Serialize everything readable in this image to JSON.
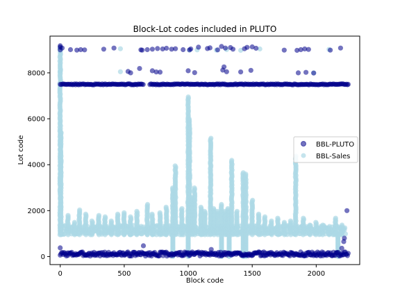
{
  "chart_data": {
    "type": "scatter",
    "title": "Block-Lot codes included in PLUTO",
    "xlabel": "Block code",
    "ylabel": "Lot code",
    "xlim": [
      -80,
      2340
    ],
    "ylim": [
      -350,
      9600
    ],
    "xticks": [
      0,
      500,
      1000,
      1500,
      2000
    ],
    "yticks": [
      0,
      2000,
      4000,
      6000,
      8000
    ],
    "grid": false,
    "legend_position": "center-right",
    "series": [
      {
        "name": "BBL-PLUTO",
        "color": "#00008b",
        "opacity": 0.55,
        "bands": [
          {
            "x_from": 0,
            "x_to": 2250,
            "y_from": 20,
            "y_to": 200,
            "step": 6
          },
          {
            "x_from": 0,
            "x_to": 650,
            "y_from": 7480,
            "y_to": 7520,
            "step": 8
          },
          {
            "x_from": 700,
            "x_to": 2250,
            "y_from": 7480,
            "y_to": 7520,
            "step": 8
          }
        ],
        "points": [
          [
            0,
            9180
          ],
          [
            0,
            9120
          ],
          [
            0,
            9000
          ],
          [
            15,
            9080
          ],
          [
            80,
            9010
          ],
          [
            130,
            8990
          ],
          [
            160,
            9010
          ],
          [
            190,
            9000
          ],
          [
            340,
            9030
          ],
          [
            420,
            9080
          ],
          [
            630,
            9000
          ],
          [
            640,
            8990
          ],
          [
            680,
            9010
          ],
          [
            720,
            9030
          ],
          [
            760,
            9060
          ],
          [
            800,
            9040
          ],
          [
            830,
            9070
          ],
          [
            870,
            9030
          ],
          [
            900,
            9050
          ],
          [
            960,
            9010
          ],
          [
            1010,
            9000
          ],
          [
            1020,
            9040
          ],
          [
            1080,
            9120
          ],
          [
            1150,
            9060
          ],
          [
            1170,
            9090
          ],
          [
            1230,
            9000
          ],
          [
            1260,
            9150
          ],
          [
            1290,
            9080
          ],
          [
            1330,
            9100
          ],
          [
            1350,
            9030
          ],
          [
            1440,
            9050
          ],
          [
            1460,
            9110
          ],
          [
            1500,
            9130
          ],
          [
            1530,
            9070
          ],
          [
            1750,
            8990
          ],
          [
            1850,
            8980
          ],
          [
            1880,
            9010
          ],
          [
            1910,
            9040
          ],
          [
            1940,
            9020
          ],
          [
            2110,
            8990
          ],
          [
            2190,
            9080
          ],
          [
            530,
            8060
          ],
          [
            550,
            8000
          ],
          [
            620,
            8190
          ],
          [
            720,
            8090
          ],
          [
            750,
            8040
          ],
          [
            780,
            8030
          ],
          [
            1000,
            8090
          ],
          [
            1050,
            8010
          ],
          [
            1270,
            8120
          ],
          [
            1280,
            8260
          ],
          [
            1300,
            8050
          ],
          [
            1410,
            8040
          ],
          [
            1490,
            8110
          ],
          [
            1860,
            8000
          ],
          [
            1920,
            8020
          ],
          [
            1980,
            7990
          ],
          [
            0,
            380
          ],
          [
            650,
            470
          ],
          [
            1180,
            310
          ],
          [
            2200,
            360
          ],
          [
            2215,
            650
          ],
          [
            2220,
            800
          ],
          [
            2240,
            2000
          ],
          [
            2250,
            7500
          ]
        ]
      },
      {
        "name": "BBL-Sales",
        "color": "#add8e6",
        "opacity": 0.7,
        "bands": [
          {
            "x_from": 0,
            "x_to": 2230,
            "y_from": 950,
            "y_to": 1350,
            "step": 4
          }
        ],
        "columns": [
          [
            0,
            950,
            9150
          ],
          [
            5,
            950,
            5500
          ],
          [
            60,
            950,
            1800
          ],
          [
            110,
            950,
            1500
          ],
          [
            150,
            950,
            2050
          ],
          [
            200,
            950,
            1900
          ],
          [
            250,
            950,
            1600
          ],
          [
            300,
            950,
            1800
          ],
          [
            350,
            950,
            1750
          ],
          [
            400,
            950,
            1600
          ],
          [
            450,
            950,
            1900
          ],
          [
            500,
            950,
            1950
          ],
          [
            550,
            950,
            1750
          ],
          [
            600,
            950,
            2000
          ],
          [
            680,
            950,
            2300
          ],
          [
            720,
            950,
            1850
          ],
          [
            780,
            950,
            1950
          ],
          [
            830,
            950,
            2200
          ],
          [
            880,
            950,
            3000
          ],
          [
            900,
            950,
            4000
          ],
          [
            950,
            950,
            2100
          ],
          [
            1000,
            950,
            7000
          ],
          [
            1010,
            950,
            6000
          ],
          [
            1030,
            950,
            2600
          ],
          [
            1050,
            950,
            3000
          ],
          [
            1100,
            950,
            2150
          ],
          [
            1130,
            950,
            2000
          ],
          [
            1175,
            950,
            5200
          ],
          [
            1200,
            950,
            2100
          ],
          [
            1230,
            950,
            2000
          ],
          [
            1260,
            950,
            2300
          ],
          [
            1290,
            950,
            2000
          ],
          [
            1310,
            950,
            2100
          ],
          [
            1340,
            950,
            4200
          ],
          [
            1380,
            950,
            2000
          ],
          [
            1430,
            950,
            3700
          ],
          [
            1450,
            950,
            3600
          ],
          [
            1500,
            950,
            2500
          ],
          [
            1550,
            950,
            1850
          ],
          [
            1600,
            950,
            1750
          ],
          [
            1650,
            950,
            1600
          ],
          [
            1700,
            950,
            1700
          ],
          [
            1750,
            950,
            1500
          ],
          [
            1800,
            950,
            1600
          ],
          [
            1840,
            950,
            4400
          ],
          [
            1900,
            950,
            1700
          ],
          [
            1950,
            950,
            1400
          ],
          [
            2000,
            950,
            1500
          ],
          [
            2050,
            950,
            1400
          ],
          [
            2100,
            950,
            1300
          ],
          [
            2150,
            950,
            1700
          ],
          [
            2200,
            950,
            1400
          ]
        ],
        "gaps": [
          [
            880,
            0,
            950
          ],
          [
            1000,
            0,
            950
          ],
          [
            1260,
            0,
            950
          ],
          [
            1320,
            0,
            950
          ],
          [
            1430,
            0,
            950
          ],
          [
            1450,
            0,
            950
          ],
          [
            2170,
            0,
            950
          ]
        ],
        "points": [
          [
            0,
            8100
          ],
          [
            0,
            8050
          ],
          [
            0,
            9050
          ],
          [
            470,
            9050
          ],
          [
            470,
            8050
          ],
          [
            1010,
            8990
          ],
          [
            1070,
            9000
          ],
          [
            1220,
            8990
          ],
          [
            1300,
            9010
          ],
          [
            1410,
            8980
          ],
          [
            1560,
            9040
          ],
          [
            1980,
            8000
          ],
          [
            2100,
            9020
          ]
        ]
      }
    ]
  }
}
